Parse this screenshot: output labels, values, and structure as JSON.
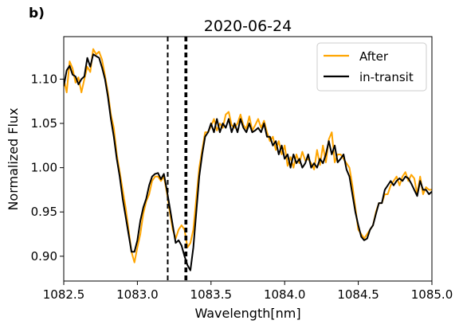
{
  "panel_label": "b)",
  "chart_data": {
    "type": "line",
    "title": "2020-06-24",
    "xlabel": "Wavelength[nm]",
    "ylabel": "Normalized Flux",
    "xlim": [
      1082.5,
      1085.0
    ],
    "ylim": [
      0.872,
      1.148
    ],
    "xticks": [
      1082.5,
      1083.0,
      1083.5,
      1084.0,
      1084.5,
      1085.0
    ],
    "xtick_labels": [
      "1082.5",
      "1083.0",
      "1083.5",
      "1084.0",
      "1084.5",
      "1085.0"
    ],
    "yticks": [
      0.9,
      0.95,
      1.0,
      1.05,
      1.1
    ],
    "ytick_labels": [
      "0.90",
      "0.95",
      "1.00",
      "1.05",
      "1.10"
    ],
    "grid": false,
    "legend_position": "top-right",
    "vlines": [
      {
        "x": 1083.206,
        "style": "dashed"
      },
      {
        "x": 1083.325,
        "style": "dashed"
      },
      {
        "x": 1083.334,
        "style": "dashed"
      }
    ],
    "series": [
      {
        "name": "After",
        "color": "#ffa500",
        "x": [
          1082.5,
          1082.52,
          1082.54,
          1082.56,
          1082.58,
          1082.6,
          1082.62,
          1082.64,
          1082.66,
          1082.68,
          1082.7,
          1082.72,
          1082.74,
          1082.76,
          1082.78,
          1082.8,
          1082.82,
          1082.84,
          1082.86,
          1082.88,
          1082.9,
          1082.92,
          1082.94,
          1082.96,
          1082.98,
          1083.0,
          1083.02,
          1083.04,
          1083.06,
          1083.08,
          1083.1,
          1083.12,
          1083.14,
          1083.16,
          1083.18,
          1083.2,
          1083.22,
          1083.24,
          1083.26,
          1083.28,
          1083.3,
          1083.32,
          1083.34,
          1083.36,
          1083.38,
          1083.4,
          1083.42,
          1083.44,
          1083.46,
          1083.48,
          1083.5,
          1083.52,
          1083.54,
          1083.56,
          1083.58,
          1083.6,
          1083.62,
          1083.64,
          1083.66,
          1083.68,
          1083.7,
          1083.72,
          1083.74,
          1083.76,
          1083.78,
          1083.8,
          1083.82,
          1083.84,
          1083.86,
          1083.88,
          1083.9,
          1083.92,
          1083.94,
          1083.96,
          1083.98,
          1084.0,
          1084.02,
          1084.04,
          1084.06,
          1084.08,
          1084.1,
          1084.12,
          1084.14,
          1084.16,
          1084.18,
          1084.2,
          1084.22,
          1084.24,
          1084.26,
          1084.28,
          1084.3,
          1084.32,
          1084.34,
          1084.36,
          1084.38,
          1084.4,
          1084.42,
          1084.44,
          1084.46,
          1084.48,
          1084.5,
          1084.52,
          1084.54,
          1084.56,
          1084.58,
          1084.6,
          1084.62,
          1084.64,
          1084.66,
          1084.68,
          1084.7,
          1084.72,
          1084.74,
          1084.76,
          1084.78,
          1084.8,
          1084.82,
          1084.84,
          1084.86,
          1084.88,
          1084.9,
          1084.92,
          1084.94,
          1084.96,
          1084.98,
          1085.0
        ],
        "y": [
          1.1,
          1.085,
          1.12,
          1.112,
          1.096,
          1.102,
          1.085,
          1.1,
          1.114,
          1.108,
          1.134,
          1.128,
          1.131,
          1.122,
          1.104,
          1.085,
          1.06,
          1.045,
          1.015,
          0.995,
          0.975,
          0.955,
          0.93,
          0.905,
          0.893,
          0.91,
          0.925,
          0.948,
          0.962,
          0.97,
          0.985,
          0.99,
          0.99,
          0.985,
          0.99,
          0.972,
          0.95,
          0.93,
          0.92,
          0.93,
          0.935,
          0.93,
          0.91,
          0.915,
          0.93,
          0.965,
          1.0,
          1.02,
          1.04,
          1.04,
          1.047,
          1.055,
          1.042,
          1.05,
          1.045,
          1.06,
          1.063,
          1.048,
          1.045,
          1.05,
          1.06,
          1.048,
          1.044,
          1.058,
          1.042,
          1.048,
          1.055,
          1.045,
          1.053,
          1.04,
          1.03,
          1.035,
          1.02,
          1.03,
          1.015,
          1.025,
          1.002,
          1.012,
          1.0,
          1.015,
          1.005,
          1.018,
          1.008,
          1.01,
          1.005,
          0.998,
          1.02,
          1.003,
          1.025,
          1.006,
          1.032,
          1.04,
          1.006,
          1.015,
          1.015,
          1.01,
          1.005,
          1.0,
          0.98,
          0.955,
          0.93,
          0.925,
          0.92,
          0.925,
          0.93,
          0.935,
          0.95,
          0.96,
          0.96,
          0.97,
          0.97,
          0.98,
          0.985,
          0.99,
          0.98,
          0.99,
          0.995,
          0.985,
          0.992,
          0.988,
          0.97,
          0.99,
          0.97,
          0.978,
          0.975,
          0.975
        ]
      },
      {
        "name": "in-transit",
        "color": "#000000",
        "x": [
          1082.5,
          1082.52,
          1082.54,
          1082.56,
          1082.58,
          1082.6,
          1082.62,
          1082.64,
          1082.66,
          1082.68,
          1082.7,
          1082.72,
          1082.74,
          1082.76,
          1082.78,
          1082.8,
          1082.82,
          1082.84,
          1082.86,
          1082.88,
          1082.9,
          1082.92,
          1082.94,
          1082.96,
          1082.98,
          1083.0,
          1083.02,
          1083.04,
          1083.06,
          1083.08,
          1083.1,
          1083.12,
          1083.14,
          1083.16,
          1083.18,
          1083.2,
          1083.22,
          1083.24,
          1083.26,
          1083.28,
          1083.3,
          1083.32,
          1083.34,
          1083.36,
          1083.38,
          1083.4,
          1083.42,
          1083.44,
          1083.46,
          1083.48,
          1083.5,
          1083.52,
          1083.54,
          1083.56,
          1083.58,
          1083.6,
          1083.62,
          1083.64,
          1083.66,
          1083.68,
          1083.7,
          1083.72,
          1083.74,
          1083.76,
          1083.78,
          1083.8,
          1083.82,
          1083.84,
          1083.86,
          1083.88,
          1083.9,
          1083.92,
          1083.94,
          1083.96,
          1083.98,
          1084.0,
          1084.02,
          1084.04,
          1084.06,
          1084.08,
          1084.1,
          1084.12,
          1084.14,
          1084.16,
          1084.18,
          1084.2,
          1084.22,
          1084.24,
          1084.26,
          1084.28,
          1084.3,
          1084.32,
          1084.34,
          1084.36,
          1084.38,
          1084.4,
          1084.42,
          1084.44,
          1084.46,
          1084.48,
          1084.5,
          1084.52,
          1084.54,
          1084.56,
          1084.58,
          1084.6,
          1084.62,
          1084.64,
          1084.66,
          1084.68,
          1084.7,
          1084.72,
          1084.74,
          1084.76,
          1084.78,
          1084.8,
          1084.82,
          1084.84,
          1084.86,
          1084.88,
          1084.9,
          1084.92,
          1084.94,
          1084.96,
          1084.98,
          1085.0
        ],
        "y": [
          1.092,
          1.11,
          1.115,
          1.105,
          1.103,
          1.094,
          1.1,
          1.103,
          1.124,
          1.114,
          1.128,
          1.126,
          1.124,
          1.113,
          1.1,
          1.08,
          1.055,
          1.035,
          1.01,
          0.99,
          0.965,
          0.945,
          0.925,
          0.905,
          0.905,
          0.918,
          0.94,
          0.955,
          0.965,
          0.98,
          0.99,
          0.993,
          0.994,
          0.987,
          0.993,
          0.975,
          0.955,
          0.935,
          0.915,
          0.918,
          0.912,
          0.9,
          0.89,
          0.884,
          0.91,
          0.95,
          0.99,
          1.015,
          1.035,
          1.04,
          1.05,
          1.04,
          1.055,
          1.04,
          1.05,
          1.045,
          1.055,
          1.04,
          1.05,
          1.04,
          1.055,
          1.045,
          1.04,
          1.05,
          1.04,
          1.042,
          1.045,
          1.04,
          1.05,
          1.035,
          1.035,
          1.025,
          1.03,
          1.015,
          1.025,
          1.01,
          1.015,
          1.0,
          1.015,
          1.005,
          1.01,
          1.0,
          1.005,
          1.015,
          1.0,
          1.005,
          1.0,
          1.01,
          1.005,
          1.015,
          1.03,
          1.015,
          1.025,
          1.006,
          1.01,
          1.015,
          0.998,
          0.99,
          0.97,
          0.95,
          0.935,
          0.922,
          0.918,
          0.92,
          0.93,
          0.935,
          0.948,
          0.96,
          0.96,
          0.975,
          0.98,
          0.985,
          0.98,
          0.985,
          0.988,
          0.985,
          0.99,
          0.988,
          0.982,
          0.975,
          0.968,
          0.985,
          0.975,
          0.975,
          0.97,
          0.973
        ]
      }
    ]
  }
}
